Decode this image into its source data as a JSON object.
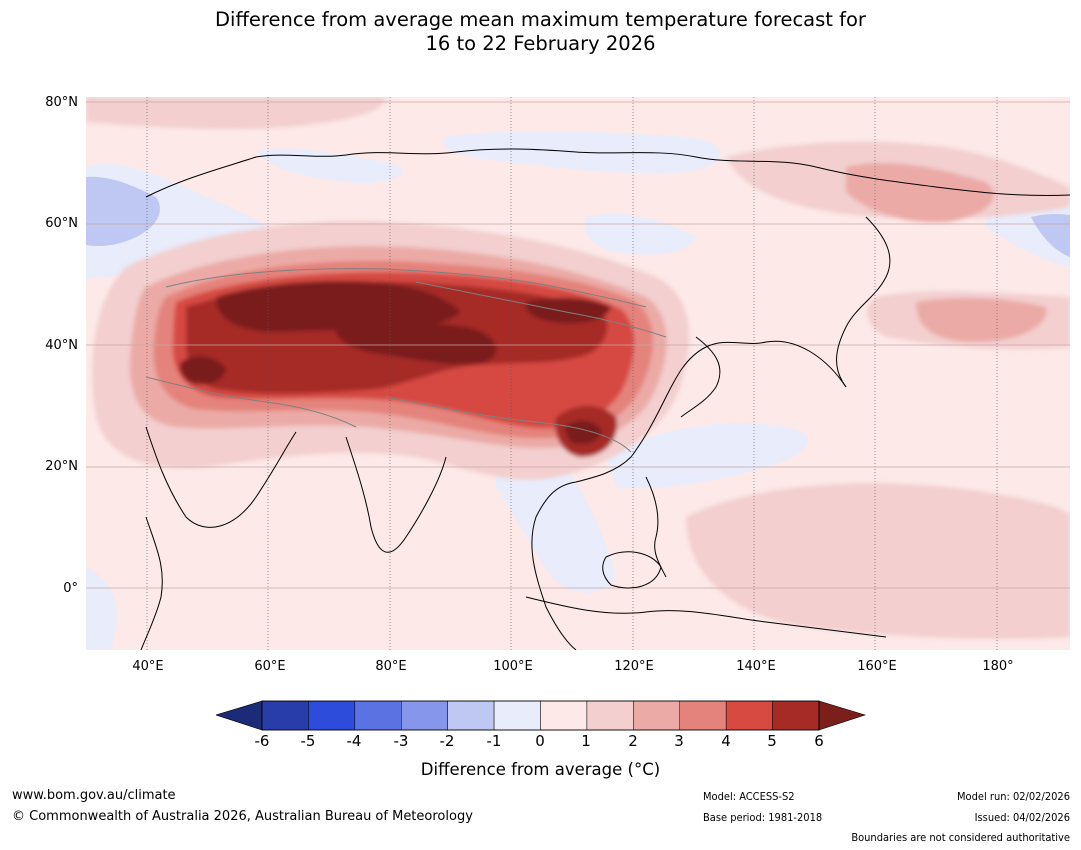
{
  "title": {
    "line1": "Difference from average mean maximum temperature forecast for",
    "line2": "16 to 22 February 2026"
  },
  "map": {
    "lat_labels": [
      "80°N",
      "60°N",
      "40°N",
      "20°N",
      "0°"
    ],
    "lon_labels": [
      "40°E",
      "60°E",
      "80°E",
      "100°E",
      "120°E",
      "140°E",
      "160°E",
      "180°"
    ],
    "lat_range": [
      -10,
      80
    ],
    "lon_range": [
      30,
      191
    ]
  },
  "colorbar": {
    "ticks": [
      "-6",
      "-5",
      "-4",
      "-3",
      "-2",
      "-1",
      "0",
      "1",
      "2",
      "3",
      "4",
      "5",
      "6"
    ],
    "colors": [
      "#283da9",
      "#2e4cdc",
      "#5b72e2",
      "#8696ea",
      "#bfc7f3",
      "#e8ecfb",
      "#fce9e8",
      "#f3cfcf",
      "#ebaaa6",
      "#e4837c",
      "#d64a42",
      "#a62b26"
    ],
    "under_color": "#1c2b78",
    "over_color": "#7a1f1a",
    "label": "Difference from average (°C)"
  },
  "footer": {
    "website": "www.bom.gov.au/climate",
    "copyright": "© Commonwealth of Australia 2026, Australian Bureau of Meteorology",
    "model": "Model: ACCESS-S2",
    "base_period": "Base period: 1981-2018",
    "model_run": "Model run: 02/02/2026",
    "issued": "Issued: 04/02/2026",
    "disclaimer": "Boundaries are not considered authoritative"
  }
}
